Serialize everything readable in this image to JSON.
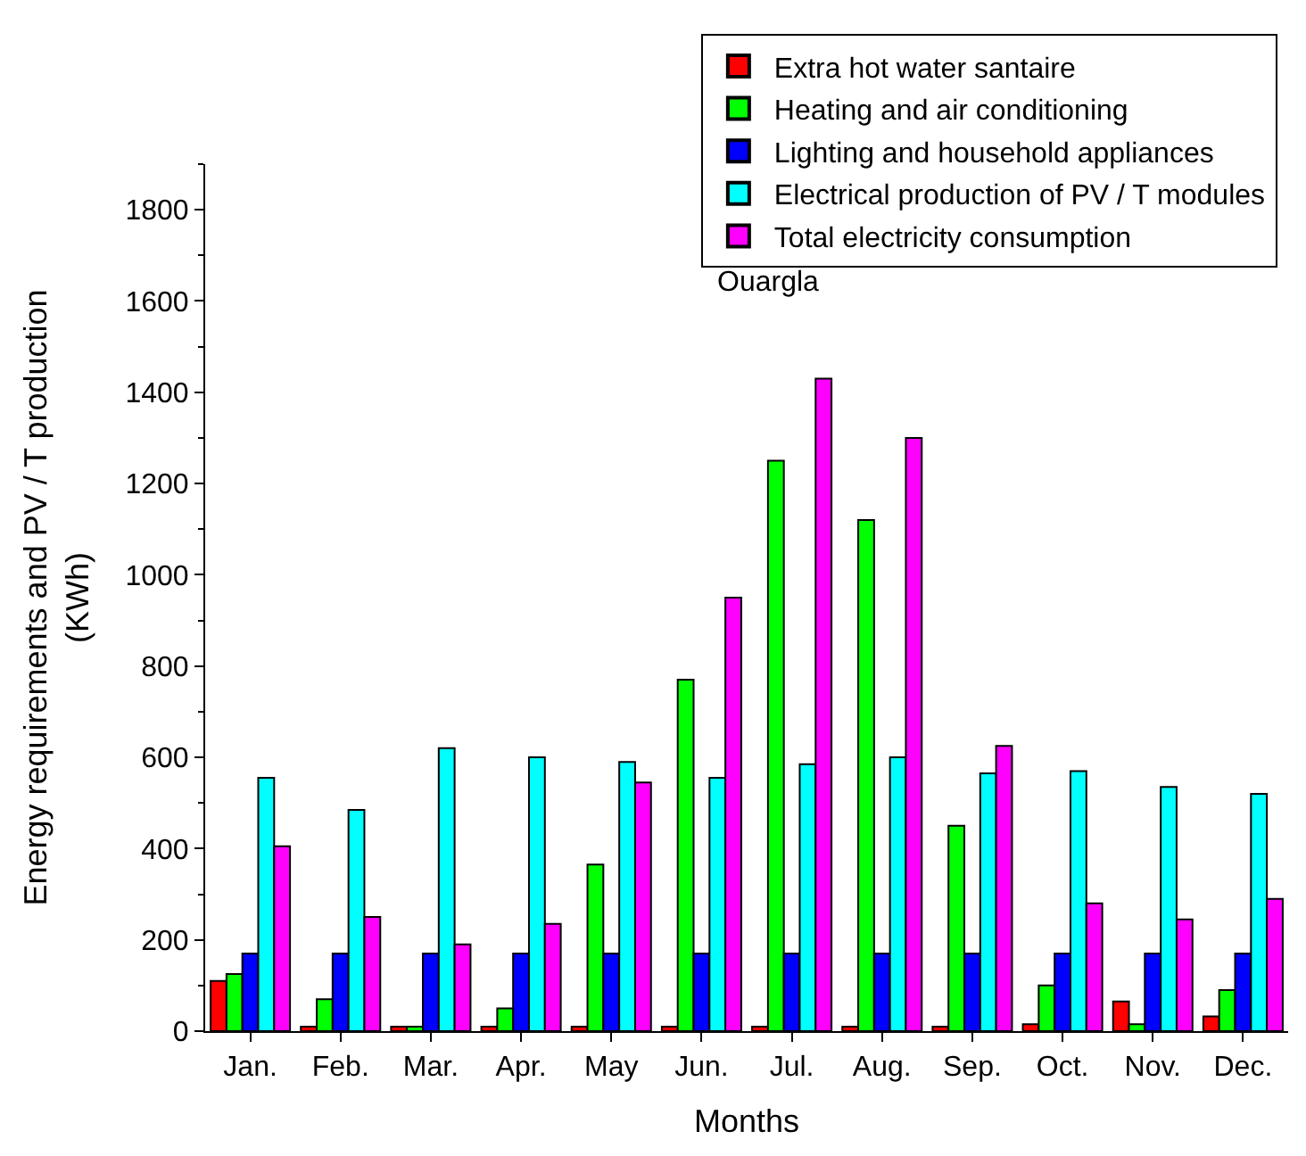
{
  "chart_data": {
    "type": "bar",
    "xlabel": "Months",
    "ylabel": "Energy requirements and PV / T production\n(KWh)",
    "categories": [
      "Jan.",
      "Feb.",
      "Mar.",
      "Apr.",
      "May",
      "Jun.",
      "Jul.",
      "Aug.",
      "Sep.",
      "Oct.",
      "Nov.",
      "Dec."
    ],
    "series": [
      {
        "name": "Extra hot water santaire",
        "color": "#ff0000",
        "values": [
          110,
          10,
          10,
          10,
          10,
          10,
          10,
          10,
          10,
          15,
          65,
          32
        ]
      },
      {
        "name": "Heating and air conditioning",
        "color": "#00ff00",
        "values": [
          125,
          70,
          10,
          50,
          365,
          770,
          1250,
          1120,
          450,
          100,
          15,
          90
        ]
      },
      {
        "name": "Lighting and household appliances",
        "color": "#0000ff",
        "values": [
          170,
          170,
          170,
          170,
          170,
          170,
          170,
          170,
          170,
          170,
          170,
          170
        ]
      },
      {
        "name": "Electrical production of PV / T modules",
        "color": "#00ffff",
        "values": [
          555,
          485,
          620,
          600,
          590,
          555,
          585,
          600,
          565,
          570,
          535,
          520
        ]
      },
      {
        "name": "Total electricity consumption",
        "color": "#ff00ff",
        "values": [
          405,
          250,
          190,
          235,
          545,
          950,
          1430,
          1300,
          625,
          280,
          245,
          290
        ]
      }
    ],
    "annotations": [
      "Ouargla"
    ],
    "ylim": [
      0,
      1900
    ],
    "yticks": [
      0,
      200,
      400,
      600,
      800,
      1000,
      1200,
      1400,
      1600,
      1800
    ],
    "legend": "top right"
  }
}
